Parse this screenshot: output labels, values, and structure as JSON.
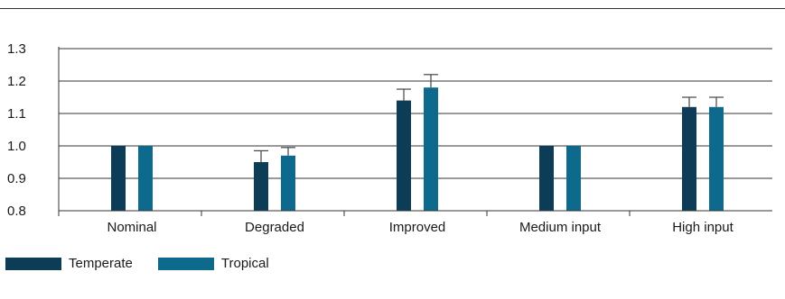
{
  "chart_data": {
    "type": "bar",
    "categories": [
      "Nominal",
      "Degraded",
      "Improved",
      "Medium input",
      "High input"
    ],
    "series": [
      {
        "name": "Temperate",
        "color": "#0d3d56",
        "values": [
          1.0,
          0.95,
          1.14,
          1.0,
          1.12
        ],
        "error_upper": [
          null,
          0.985,
          1.175,
          null,
          1.15
        ]
      },
      {
        "name": "Tropical",
        "color": "#0e6a8c",
        "values": [
          1.0,
          0.97,
          1.18,
          1.0,
          1.12
        ],
        "error_upper": [
          null,
          0.995,
          1.22,
          null,
          1.15
        ]
      }
    ],
    "ylim": [
      0.8,
      1.3
    ],
    "yticks": [
      "0.8",
      "0.9",
      "1.0",
      "1.1",
      "1.2",
      "1.3"
    ],
    "grid": true,
    "legend_position": "bottom-left"
  }
}
